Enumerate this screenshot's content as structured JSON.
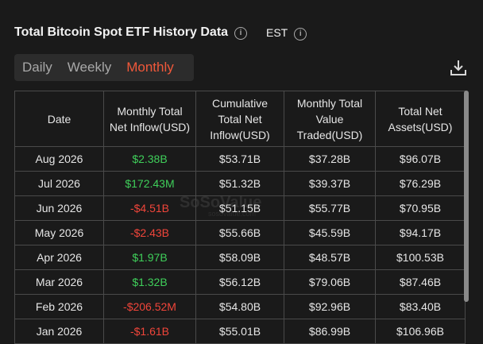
{
  "header": {
    "title": "Total Bitcoin Spot ETF History Data",
    "timezone": "EST"
  },
  "tabs": [
    "Daily",
    "Weekly",
    "Monthly"
  ],
  "active_tab": 2,
  "watermark": {
    "brand": "SoSoValue",
    "site": "sosovalue.com"
  },
  "table": {
    "columns": [
      "Date",
      "Monthly Total Net Inflow(USD)",
      "Cumulative Total Net Inflow(USD)",
      "Monthly Total Value Traded(USD)",
      "Total Net Assets(USD)"
    ],
    "rows": [
      [
        "Aug 2026",
        "$2.38B",
        "$53.71B",
        "$37.28B",
        "$96.07B"
      ],
      [
        "Jul 2026",
        "$172.43M",
        "$51.32B",
        "$39.37B",
        "$76.29B"
      ],
      [
        "Jun 2026",
        "-$4.51B",
        "$51.15B",
        "$55.77B",
        "$70.95B"
      ],
      [
        "May 2026",
        "-$2.43B",
        "$55.66B",
        "$45.59B",
        "$94.17B"
      ],
      [
        "Apr 2026",
        "$1.97B",
        "$58.09B",
        "$48.57B",
        "$100.53B"
      ],
      [
        "Mar 2026",
        "$1.32B",
        "$56.12B",
        "$79.06B",
        "$87.46B"
      ],
      [
        "Feb 2026",
        "-$206.52M",
        "$54.80B",
        "$92.96B",
        "$83.40B"
      ],
      [
        "Jan 2026",
        "-$1.61B",
        "$55.01B",
        "$86.99B",
        "$106.96B"
      ]
    ]
  }
}
